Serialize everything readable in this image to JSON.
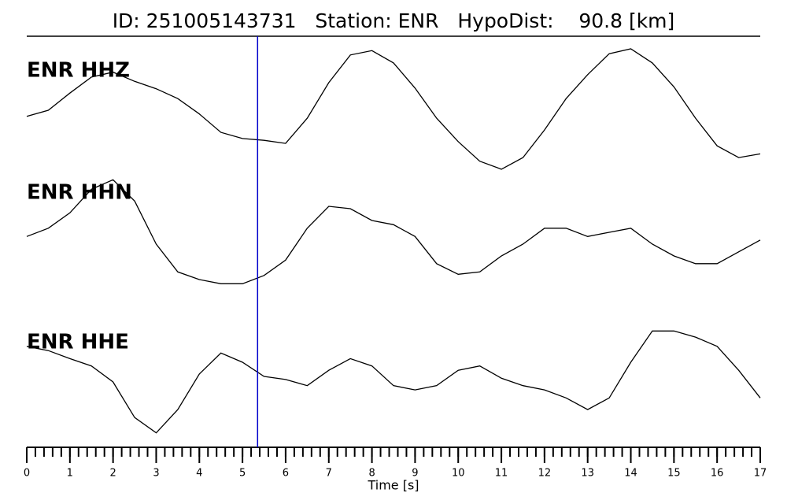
{
  "chart_data": {
    "type": "seismogram",
    "title": "ID: 251005143731   Station: ENR   HypoDist:    90.8 [km]",
    "xlabel": "Time [s]",
    "x": [
      0,
      0.5,
      1,
      1.5,
      2,
      2.5,
      3,
      3.5,
      4,
      4.5,
      5,
      5.5,
      6,
      6.5,
      7,
      7.5,
      8,
      8.5,
      9,
      9.5,
      10,
      10.5,
      11,
      11.5,
      12,
      12.5,
      13,
      13.5,
      14,
      14.5,
      15,
      15.5,
      16,
      16.5,
      17
    ],
    "xlim": [
      0,
      17
    ],
    "xticks": [
      0,
      1,
      2,
      3,
      4,
      5,
      6,
      7,
      8,
      9,
      10,
      11,
      12,
      13,
      14,
      15,
      16,
      17
    ],
    "minor_tick_step": 0.2,
    "ylim": [
      -1,
      1
    ],
    "label_color": "#4e9a06",
    "pick": {
      "time": 5.35,
      "color": "#0000cc"
    },
    "series": [
      {
        "name": "ENR HHZ",
        "color": "#000000",
        "values": [
          -0.1,
          0,
          0.28,
          0.54,
          0.62,
          0.47,
          0.35,
          0.19,
          -0.06,
          -0.36,
          -0.46,
          -0.49,
          -0.54,
          -0.13,
          0.45,
          0.9,
          0.97,
          0.77,
          0.36,
          -0.13,
          -0.51,
          -0.83,
          -0.96,
          -0.77,
          -0.32,
          0.19,
          0.58,
          0.92,
          1.0,
          0.77,
          0.38,
          -0.13,
          -0.58,
          -0.77,
          -0.71
        ]
      },
      {
        "name": "ENR HHN",
        "color": "#000000",
        "values": [
          -0.07,
          0.07,
          0.33,
          0.73,
          0.89,
          0.53,
          -0.2,
          -0.67,
          -0.8,
          -0.87,
          -0.87,
          -0.73,
          -0.47,
          0.07,
          0.44,
          0.4,
          0.2,
          0.13,
          -0.07,
          -0.53,
          -0.71,
          -0.67,
          -0.4,
          -0.2,
          0.07,
          0.07,
          -0.07,
          0,
          0.07,
          -0.2,
          -0.4,
          -0.53,
          -0.53,
          -0.33,
          -0.13
        ]
      },
      {
        "name": "ENR HHE",
        "color": "#000000",
        "values": [
          0.58,
          0.51,
          0.38,
          0.26,
          0,
          -0.58,
          -0.83,
          -0.45,
          0.13,
          0.47,
          0.32,
          0.09,
          0.04,
          -0.06,
          0.19,
          0.38,
          0.26,
          -0.06,
          -0.13,
          -0.06,
          0.19,
          0.26,
          0.06,
          -0.06,
          -0.13,
          -0.26,
          -0.45,
          -0.26,
          0.32,
          0.83,
          0.83,
          0.73,
          0.58,
          0.19,
          -0.26
        ]
      }
    ]
  }
}
